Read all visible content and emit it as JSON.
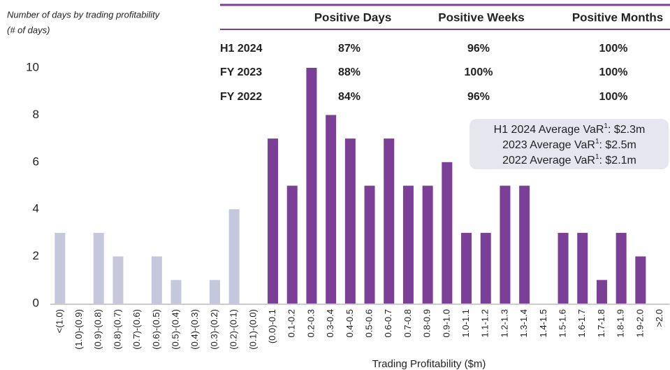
{
  "chart_data": {
    "type": "bar",
    "title": "Number of days by trading profitability",
    "subtitle": "(# of days)",
    "x_label": "Trading Profitability ($m)",
    "categories": [
      "<(1.0)",
      "(1.0)-(0.9)",
      "(0.9)-(0.8)",
      "(0.8)-(0.7)",
      "(0.7)-(0.6)",
      "(0.6)-(0.5)",
      "(0.5)-(0.4)",
      "(0.4)-(0.3)",
      "(0.3)-(0.2)",
      "(0.2)-(0.1)",
      "(0.1)-(0.0)",
      "(0.0)-0.1",
      "0.1-0.2",
      "0.2-0.3",
      "0.3-0.4",
      "0.4-0.5",
      "0.5-0.6",
      "0.6-0.7",
      "0.7-0.8",
      "0.8-0.9",
      "0.9-1.0",
      "1.0-1.1",
      "1.1-1.2",
      "1.2-1.3",
      "1.3-1.4",
      "1.4-1.5",
      "1.5-1.6",
      "1.6-1.7",
      "1.7-1.8",
      "1.8-1.9",
      "1.9-2.0",
      ">2.0"
    ],
    "values": [
      3,
      0,
      3,
      2,
      0,
      2,
      1,
      0,
      1,
      4,
      0,
      7,
      5,
      10,
      8,
      7,
      5,
      7,
      5,
      5,
      6,
      3,
      3,
      5,
      5,
      0,
      3,
      3,
      1,
      3,
      2,
      0
    ],
    "colors": [
      "#c5c8dd",
      "#c5c8dd",
      "#c5c8dd",
      "#c5c8dd",
      "#c5c8dd",
      "#c5c8dd",
      "#c5c8dd",
      "#c5c8dd",
      "#c5c8dd",
      "#c5c8dd",
      "#c5c8dd",
      "#7b3f98",
      "#7b3f98",
      "#7b3f98",
      "#7b3f98",
      "#7b3f98",
      "#7b3f98",
      "#7b3f98",
      "#7b3f98",
      "#7b3f98",
      "#7b3f98",
      "#7b3f98",
      "#7b3f98",
      "#7b3f98",
      "#7b3f98",
      "#7b3f98",
      "#7b3f98",
      "#7b3f98",
      "#7b3f98",
      "#7b3f98",
      "#7b3f98",
      "#7b3f98"
    ],
    "ylim": [
      0,
      10
    ],
    "yticks": [
      0,
      2,
      4,
      6,
      8,
      10
    ],
    "grid": false,
    "table": {
      "columns": [
        "Positive Days",
        "Positive Weeks",
        "Positive Months"
      ],
      "rows": [
        {
          "label": "H1 2024",
          "values": [
            "87%",
            "96%",
            "100%"
          ]
        },
        {
          "label": "FY 2023",
          "values": [
            "88%",
            "100%",
            "100%"
          ]
        },
        {
          "label": "FY 2022",
          "values": [
            "84%",
            "96%",
            "100%"
          ]
        }
      ]
    },
    "annotations": [
      {
        "prefix": "H1 2024 Average VaR",
        "note": "1",
        "suffix": ": $2.3m"
      },
      {
        "prefix": "2023 Average VaR",
        "note": "1",
        "suffix": ": $2.5m"
      },
      {
        "prefix": "2022 Average VaR",
        "note": "1",
        "suffix": ": $2.1m"
      }
    ]
  }
}
